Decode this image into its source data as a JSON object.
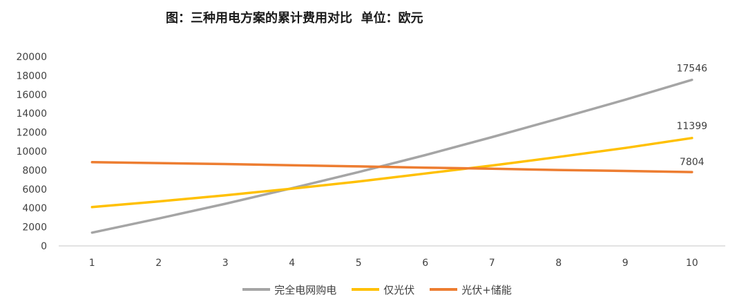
{
  "chart_data": {
    "type": "line",
    "title": "图：三种用电方案的累计费用对比  单位：欧元",
    "x": [
      1,
      2,
      3,
      4,
      5,
      6,
      7,
      8,
      9,
      10
    ],
    "x_tick_labels": [
      "1",
      "2",
      "3",
      "4",
      "5",
      "6",
      "7",
      "8",
      "9",
      "10"
    ],
    "ylim": [
      0,
      20000
    ],
    "y_ticks": [
      0,
      2000,
      4000,
      6000,
      8000,
      10000,
      12000,
      14000,
      16000,
      18000,
      20000
    ],
    "grid": false,
    "legend_position": "bottom",
    "series": [
      {
        "name": "完全电网购电",
        "color": "#a5a5a5",
        "values": [
          1400,
          2900,
          4450,
          6100,
          7800,
          9600,
          11500,
          13450,
          15450,
          17546
        ],
        "end_label": "17546"
      },
      {
        "name": "仅光伏",
        "color": "#ffc000",
        "values": [
          4100,
          4700,
          5350,
          6050,
          6800,
          7650,
          8500,
          9400,
          10350,
          11399
        ],
        "end_label": "11399"
      },
      {
        "name": "光伏+储能",
        "color": "#ed7d31",
        "values": [
          8850,
          8750,
          8650,
          8520,
          8400,
          8270,
          8150,
          8020,
          7920,
          7804
        ],
        "end_label": "7804"
      }
    ]
  }
}
